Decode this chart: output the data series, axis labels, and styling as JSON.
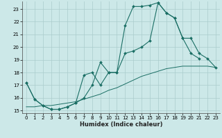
{
  "title": "",
  "xlabel": "Humidex (Indice chaleur)",
  "bg_color": "#cce8e8",
  "line_color": "#1a6e64",
  "grid_color": "#aacccc",
  "xlim": [
    -0.5,
    23.5
  ],
  "ylim": [
    14.8,
    23.6
  ],
  "yticks": [
    15,
    16,
    17,
    18,
    19,
    20,
    21,
    22,
    23
  ],
  "xticks": [
    0,
    1,
    2,
    3,
    4,
    5,
    6,
    7,
    8,
    9,
    10,
    11,
    12,
    13,
    14,
    15,
    16,
    17,
    18,
    19,
    20,
    21,
    22,
    23
  ],
  "series": [
    {
      "x": [
        0,
        1,
        2,
        3,
        4,
        5,
        6,
        7,
        8,
        9,
        10,
        11,
        12,
        13,
        14,
        15,
        16,
        17,
        18,
        19,
        20,
        21,
        22,
        23
      ],
      "y": [
        15.3,
        15.3,
        15.4,
        15.4,
        15.5,
        15.6,
        15.7,
        15.9,
        16.1,
        16.3,
        16.6,
        16.8,
        17.1,
        17.4,
        17.7,
        17.9,
        18.1,
        18.3,
        18.4,
        18.5,
        18.5,
        18.5,
        18.5,
        18.4
      ]
    },
    {
      "x": [
        0,
        1,
        2,
        3,
        4,
        5,
        6,
        7,
        8,
        9,
        10,
        11,
        12,
        13,
        14,
        15,
        16,
        17,
        18,
        19,
        20,
        21
      ],
      "y": [
        17.2,
        15.9,
        15.4,
        15.1,
        15.1,
        15.3,
        15.6,
        16.0,
        17.0,
        18.8,
        18.0,
        18.0,
        21.7,
        23.2,
        23.2,
        23.3,
        23.5,
        22.7,
        22.3,
        20.7,
        19.5,
        19.1
      ]
    },
    {
      "x": [
        0,
        1,
        2,
        3,
        4,
        5,
        6,
        7,
        8,
        9,
        10,
        11,
        12,
        13,
        14,
        15,
        16,
        17,
        18,
        19,
        20,
        21,
        22,
        23
      ],
      "y": [
        17.2,
        15.9,
        15.4,
        15.1,
        15.1,
        15.3,
        15.6,
        17.8,
        18.0,
        17.0,
        18.0,
        18.0,
        19.5,
        19.7,
        20.0,
        20.5,
        23.5,
        22.7,
        22.3,
        20.7,
        20.7,
        19.5,
        19.1,
        18.4
      ]
    }
  ]
}
